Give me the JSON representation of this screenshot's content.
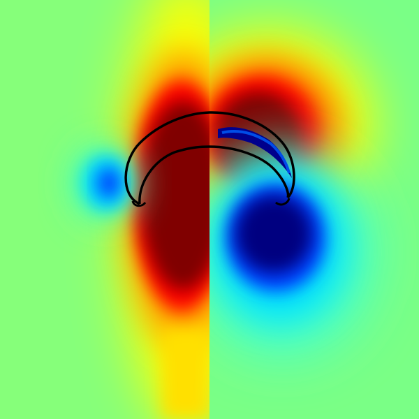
{
  "colormap": "jet",
  "colors": {
    "background": "#80ff80",
    "outline": "#000000",
    "saturated_low": "#00007f",
    "saturated_high": "#7f0000"
  },
  "panels": [
    "left-half-field",
    "right-half-field"
  ],
  "shape": "crescent-bell"
}
